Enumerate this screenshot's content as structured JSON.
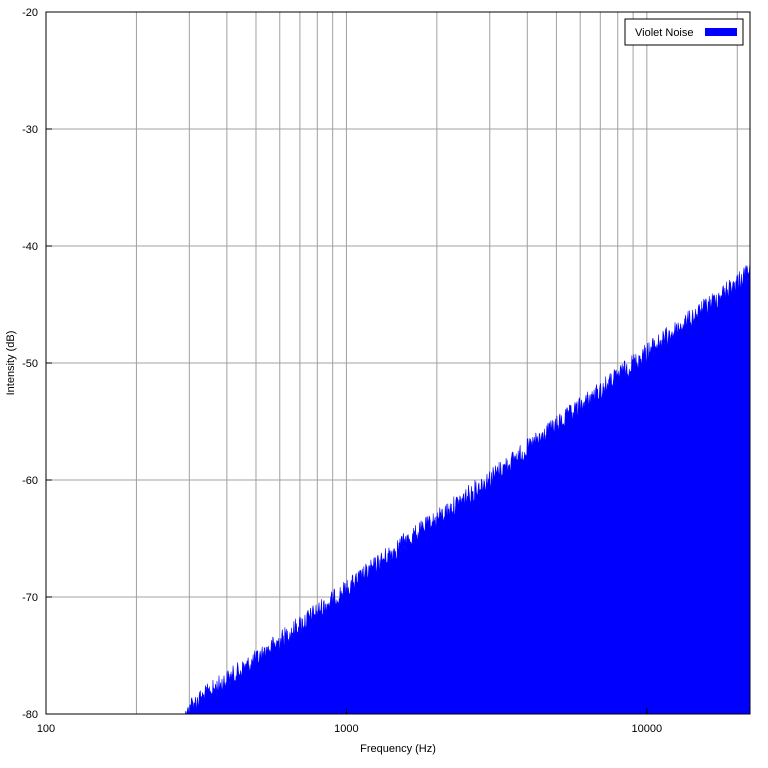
{
  "chart_data": {
    "type": "area",
    "title": "",
    "xlabel": "Frequency (Hz)",
    "ylabel": "Intensity (dB)",
    "x_scale": "log",
    "xlim": [
      100,
      22050
    ],
    "ylim": [
      -80,
      -20
    ],
    "x_ticks": [
      100,
      1000,
      10000
    ],
    "x_tick_labels": [
      "100",
      "1000",
      "10000"
    ],
    "y_ticks": [
      -80,
      -70,
      -60,
      -50,
      -40,
      -30,
      -20
    ],
    "y_tick_labels": [
      "-80",
      "-70",
      "-60",
      "-50",
      "-40",
      "-30",
      "-20"
    ],
    "grid": true,
    "legend_position": "top-right",
    "series": [
      {
        "name": "Violet Noise",
        "color": "#0000ff",
        "fill": "solid",
        "x": [
          100,
          200,
          270,
          290,
          300,
          400,
          500,
          700,
          1000,
          1500,
          2000,
          3000,
          4000,
          5000,
          7000,
          10000,
          15000,
          20000,
          22050
        ],
        "values": [
          -80,
          -80,
          -80,
          -79.8,
          -78.5,
          -76.2,
          -74.5,
          -71.5,
          -68.5,
          -64.8,
          -62.5,
          -59,
          -56.5,
          -54.5,
          -51.5,
          -48.2,
          -44.8,
          -42.2,
          -41.2
        ]
      }
    ]
  }
}
